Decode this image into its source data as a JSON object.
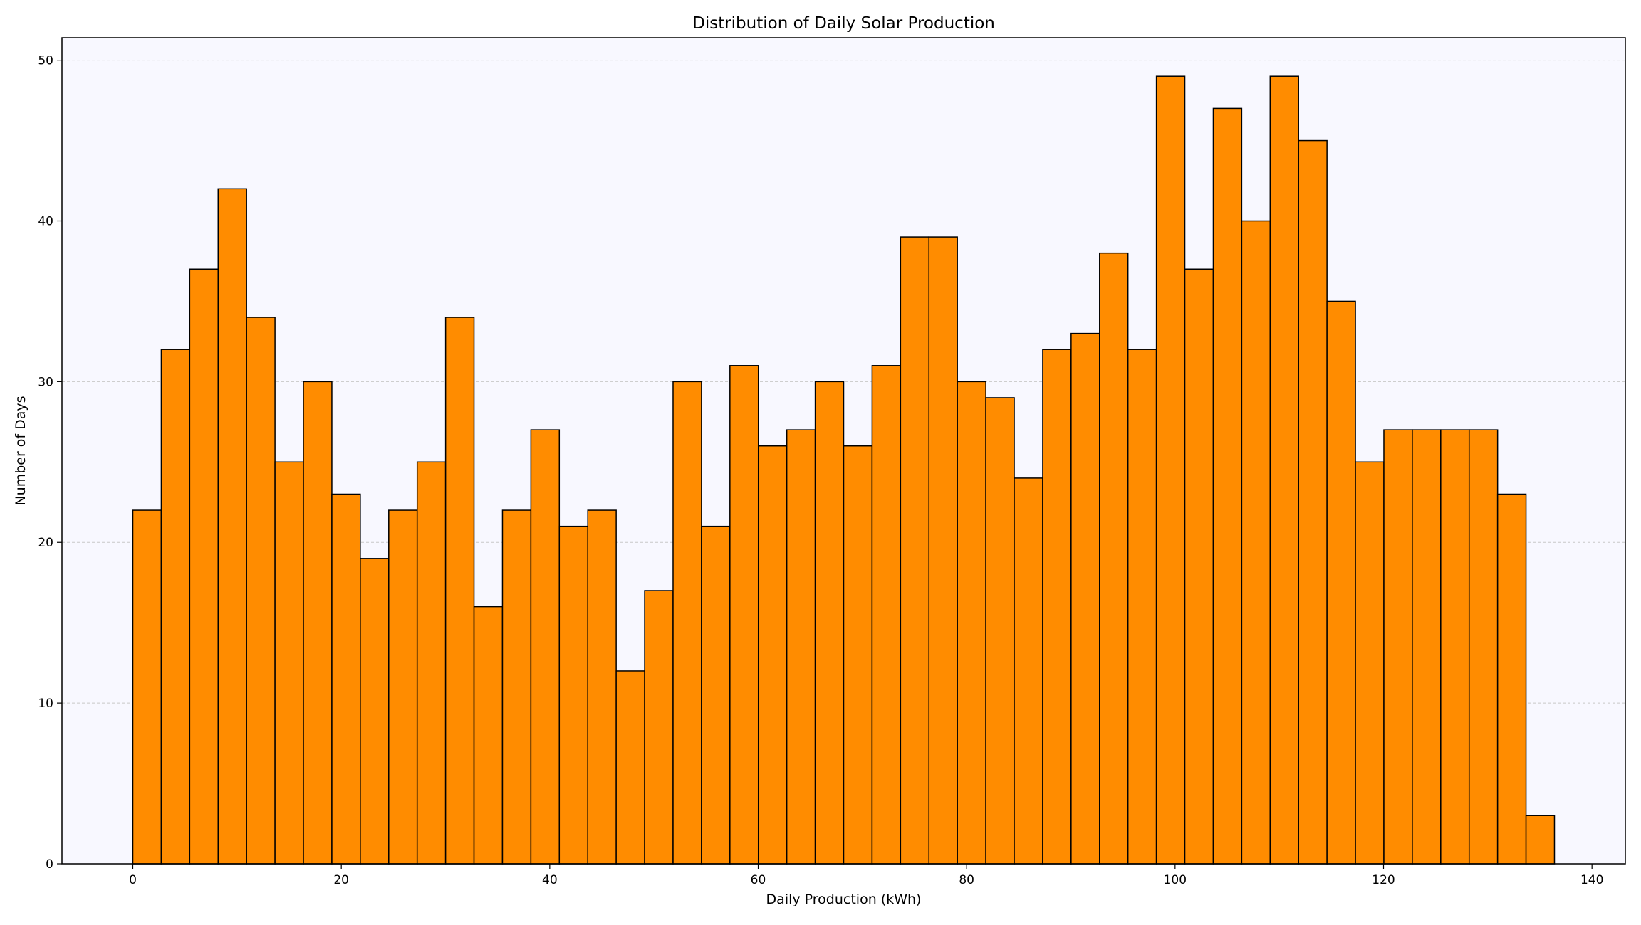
{
  "chart_data": {
    "type": "bar",
    "subtype": "histogram",
    "title": "Distribution of Daily Solar Production",
    "xlabel": "Daily Production (kWh)",
    "ylabel": "Number of Days",
    "xlim": [
      -6.8,
      143.2
    ],
    "ylim": [
      0,
      51.4
    ],
    "xticks": [
      0,
      20,
      40,
      60,
      80,
      100,
      120,
      140
    ],
    "yticks": [
      0,
      10,
      20,
      30,
      40,
      50
    ],
    "bin_start": 0,
    "bin_width": 2.728,
    "values": [
      22,
      32,
      37,
      42,
      34,
      25,
      30,
      23,
      19,
      22,
      25,
      34,
      16,
      22,
      27,
      21,
      22,
      12,
      17,
      30,
      21,
      31,
      26,
      27,
      30,
      26,
      31,
      39,
      39,
      30,
      29,
      24,
      32,
      33,
      38,
      32,
      49,
      37,
      47,
      40,
      49,
      45,
      35,
      25,
      27,
      27,
      27,
      27,
      23,
      3
    ],
    "grid": {
      "y": true,
      "x": false,
      "style": "dashed"
    },
    "colors": {
      "bar": "#ff8c00",
      "edge": "#000000",
      "axes_bg": "#f8f8ff",
      "grid": "#c8c8c8"
    }
  }
}
